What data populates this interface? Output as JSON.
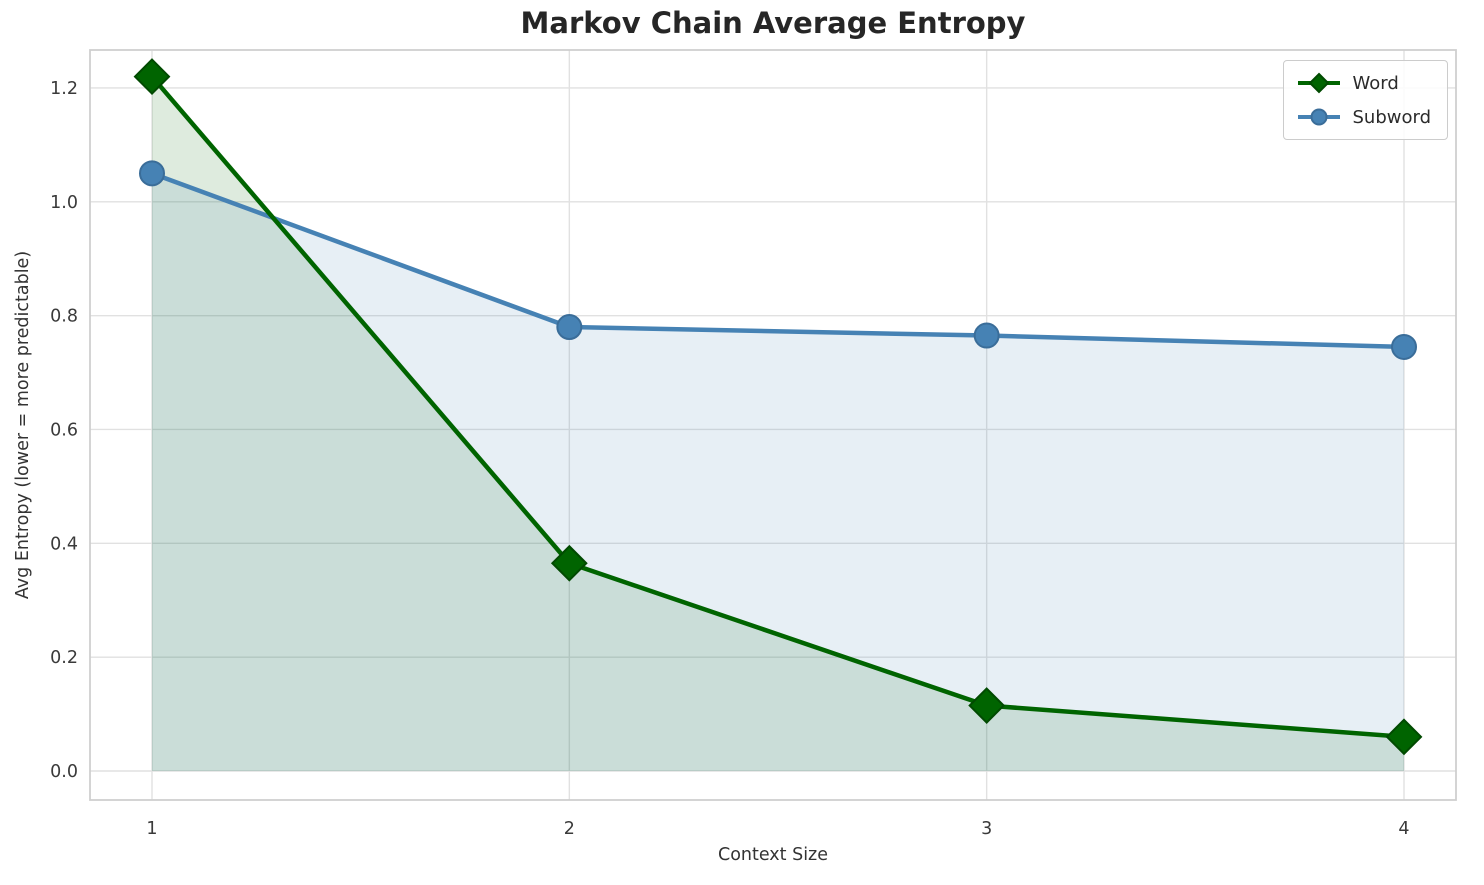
{
  "chart_data": {
    "type": "line",
    "title": "Markov Chain Average Entropy",
    "xlabel": "Context Size",
    "ylabel": "Avg Entropy (lower = more predictable)",
    "x": [
      1,
      2,
      3,
      4
    ],
    "xtick_labels": [
      "1",
      "2",
      "3",
      "4"
    ],
    "yticks": [
      0.0,
      0.2,
      0.4,
      0.6,
      0.8,
      1.0,
      1.2
    ],
    "ylim": [
      -0.05,
      1.27
    ],
    "xlim": [
      0.85,
      4.15
    ],
    "grid": true,
    "legend": {
      "position": "upper right",
      "entries": [
        "Word",
        "Subword"
      ]
    },
    "series": [
      {
        "name": "Word",
        "marker": "diamond",
        "color": "#006400",
        "marker_edge": "#014a01",
        "fill_opacity": 0.13,
        "values": [
          1.22,
          0.365,
          0.115,
          0.06
        ]
      },
      {
        "name": "Subword",
        "marker": "circle",
        "color": "#4682b4",
        "marker_edge": "#3a6d99",
        "fill_opacity": 0.13,
        "values": [
          1.05,
          0.78,
          0.765,
          0.745
        ]
      }
    ],
    "style": {
      "grid_color": "#e1e1e1",
      "border_color": "#cfcfcf",
      "tick_label_color": "#3a3a3a",
      "title_color": "#262626"
    }
  }
}
